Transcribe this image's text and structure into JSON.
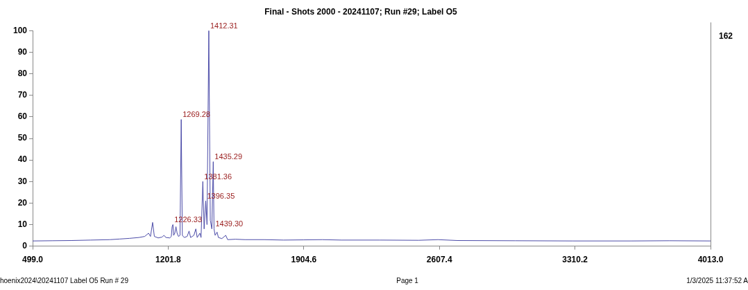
{
  "chart_data": {
    "type": "line",
    "title": "Final - Shots 2000 - 20241107; Run #29; Label O5",
    "color": "#4b4ba8",
    "marker": "none",
    "grid": false,
    "legend": false,
    "x": [
      499,
      600,
      700,
      800,
      900,
      950,
      1000,
      1050,
      1080,
      1100,
      1110,
      1121,
      1130,
      1150,
      1170,
      1180,
      1190,
      1210,
      1218,
      1222,
      1226.33,
      1230,
      1236,
      1242,
      1248,
      1255,
      1263,
      1269.28,
      1275,
      1285,
      1300,
      1310,
      1318,
      1335,
      1345,
      1352,
      1366,
      1372,
      1381.36,
      1388,
      1396.35,
      1403,
      1412.31,
      1420,
      1428,
      1435.29,
      1439.3,
      1445,
      1455,
      1462,
      1480,
      1500,
      1510,
      1550,
      1600,
      1700,
      1800,
      1904.6,
      2000,
      2100,
      2300,
      2500,
      2600,
      2700,
      3000,
      3300,
      3600,
      3800,
      4013
    ],
    "values": [
      2.4,
      2.5,
      2.6,
      2.8,
      3,
      3.3,
      3.6,
      4,
      4.5,
      6,
      4.5,
      11,
      4.5,
      3.8,
      4.2,
      5,
      4,
      3.8,
      4.5,
      9,
      10,
      5,
      6,
      9,
      6,
      4.5,
      5,
      58.8,
      5,
      4,
      4.5,
      7,
      4,
      5,
      8,
      4,
      6,
      4,
      30,
      8,
      21,
      10,
      100,
      12,
      8,
      39.2,
      8,
      5,
      6.5,
      4,
      3.5,
      5,
      3,
      3.2,
      3,
      3,
      2.8,
      2.9,
      3,
      2.8,
      2.8,
      2.7,
      3,
      2.6,
      2.5,
      2.4,
      2.4,
      2.5,
      2.4
    ],
    "xlim": [
      499,
      4013
    ],
    "xticks": [
      {
        "value": 499,
        "label": "499.0"
      },
      {
        "value": 1201.8,
        "label": "1201.8"
      },
      {
        "value": 1904.6,
        "label": "1904.6"
      },
      {
        "value": 2607.4,
        "label": "2607.4"
      },
      {
        "value": 3310.2,
        "label": "3310.2"
      },
      {
        "value": 4013,
        "label": "4013.0"
      }
    ],
    "ylim": [
      0,
      100
    ],
    "yticks": [
      0,
      10,
      20,
      30,
      40,
      50,
      60,
      70,
      80,
      90,
      100
    ],
    "annotations": [
      {
        "text": "1412.31",
        "x": 1412.31,
        "y": 100
      },
      {
        "text": "1269.28",
        "x": 1269.28,
        "y": 58.8
      },
      {
        "text": "1435.29",
        "x": 1435.29,
        "y": 39.2
      },
      {
        "text": "1381.36",
        "x": 1381.36,
        "y": 30
      },
      {
        "text": "1396.35",
        "x": 1396.35,
        "y": 21
      },
      {
        "text": "1226.33",
        "x": 1226.33,
        "y": 10
      },
      {
        "text": "1439.30",
        "x": 1439.3,
        "y": 8
      },
      "162",
      "hoenix2024\\20241107 Label O5 Run # 29",
      "Page 1",
      "1/3/2025 11:37:52 A"
    ]
  }
}
